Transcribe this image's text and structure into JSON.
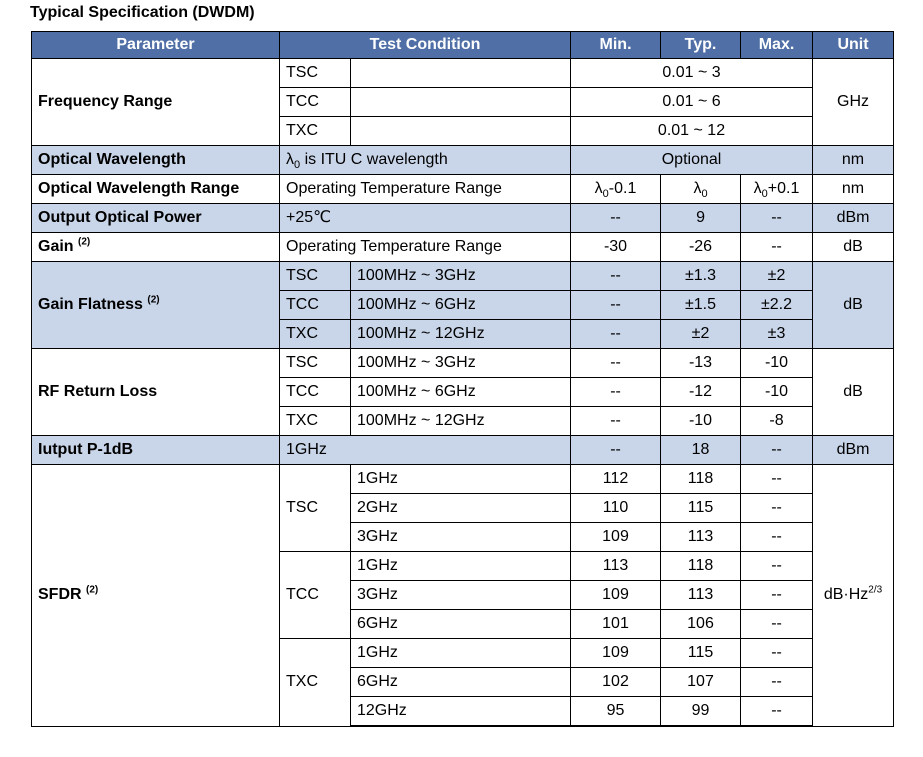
{
  "title": "Typical Specification (DWDM)",
  "headers": {
    "parameter": "Parameter",
    "test_condition": "Test Condition",
    "min": "Min.",
    "typ": "Typ.",
    "max": "Max.",
    "unit": "Unit"
  },
  "freq": {
    "name": "Frequency Range",
    "unit": "GHz",
    "rows": [
      {
        "mod": "TSC",
        "val": "0.01 ~ 3"
      },
      {
        "mod": "TCC",
        "val": "0.01 ~ 6"
      },
      {
        "mod": "TXC",
        "val": "0.01 ~ 12"
      }
    ]
  },
  "owl": {
    "name": "Optical Wavelength",
    "lambda": "λ",
    "sub": "0",
    "cond_rest": " is ITU C wavelength",
    "value": "Optional",
    "unit": "nm"
  },
  "owr": {
    "name": "Optical Wavelength Range",
    "cond": "Operating Temperature Range",
    "min_lambda": "λ",
    "min_sub": "0",
    "min_rest": "-0.1",
    "typ_lambda": "λ",
    "typ_sub": "0",
    "max_lambda": "λ",
    "max_sub": "0",
    "max_rest": "+0.1",
    "unit": "nm"
  },
  "oop": {
    "name": "Output Optical Power",
    "cond": "+25℃",
    "min": "--",
    "typ": "9",
    "max": "--",
    "unit": "dBm"
  },
  "gain": {
    "name": "Gain",
    "note": "(2)",
    "cond": "Operating Temperature Range",
    "min": "-30",
    "typ": "-26",
    "max": "--",
    "unit": "dB"
  },
  "gf": {
    "name": "Gain Flatness",
    "note": "(2)",
    "unit": "dB",
    "rows": [
      {
        "mod": "TSC",
        "cond": "100MHz ~ 3GHz",
        "min": "--",
        "typ": "±1.3",
        "max": "±2"
      },
      {
        "mod": "TCC",
        "cond": "100MHz ~ 6GHz",
        "min": "--",
        "typ": "±1.5",
        "max": "±2.2"
      },
      {
        "mod": "TXC",
        "cond": "100MHz ~ 12GHz",
        "min": "--",
        "typ": "±2",
        "max": "±3"
      }
    ]
  },
  "rl": {
    "name": "RF Return Loss",
    "unit": "dB",
    "rows": [
      {
        "mod": "TSC",
        "cond": "100MHz ~ 3GHz",
        "min": "--",
        "typ": "-13",
        "max": "-10"
      },
      {
        "mod": "TCC",
        "cond": "100MHz ~ 6GHz",
        "min": "--",
        "typ": "-12",
        "max": "-10"
      },
      {
        "mod": "TXC",
        "cond": "100MHz ~ 12GHz",
        "min": "--",
        "typ": "-10",
        "max": "-8"
      }
    ]
  },
  "p1db": {
    "name": "Iutput P-1dB",
    "cond": "1GHz",
    "min": "--",
    "typ": "18",
    "max": "--",
    "unit": "dBm"
  },
  "sfdr": {
    "name": "SFDR",
    "note": "(2)",
    "unit_base": "dB·Hz",
    "unit_exp": "2/3",
    "groups": [
      {
        "mod": "TSC",
        "rows": [
          {
            "f": "1GHz",
            "min": "112",
            "typ": "118",
            "max": "--"
          },
          {
            "f": "2GHz",
            "min": "110",
            "typ": "115",
            "max": "--"
          },
          {
            "f": "3GHz",
            "min": "109",
            "typ": "113",
            "max": "--"
          }
        ]
      },
      {
        "mod": "TCC",
        "rows": [
          {
            "f": "1GHz",
            "min": "113",
            "typ": "118",
            "max": "--"
          },
          {
            "f": "3GHz",
            "min": "109",
            "typ": "113",
            "max": "--"
          },
          {
            "f": "6GHz",
            "min": "101",
            "typ": "106",
            "max": "--"
          }
        ]
      },
      {
        "mod": "TXC",
        "rows": [
          {
            "f": "1GHz",
            "min": "109",
            "typ": "115",
            "max": "--"
          },
          {
            "f": "6GHz",
            "min": "102",
            "typ": "107",
            "max": "--"
          },
          {
            "f": "12GHz",
            "min": "95",
            "typ": "99",
            "max": "--"
          }
        ]
      }
    ]
  },
  "colors": {
    "header_bg": "#4f6fa6",
    "shade_bg": "#c9d6ea"
  }
}
